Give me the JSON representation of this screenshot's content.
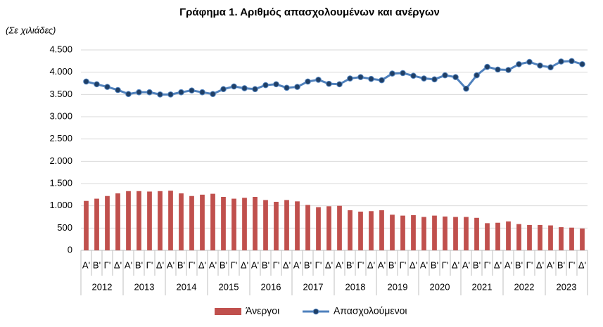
{
  "chart_data": {
    "type": "bar",
    "title": "Γράφημα 1. Αριθμός απασχολουμένων και ανέργων",
    "y_label": "(Σε χιλιάδες)",
    "categories": [
      "Α'",
      "Β'",
      "Γ'",
      "Δ'",
      "Α'",
      "Β'",
      "Γ'",
      "Δ'",
      "Α'",
      "Β'",
      "Γ'",
      "Δ'",
      "Α'",
      "Β'",
      "Γ'",
      "Δ'",
      "Α'",
      "Β'",
      "Γ'",
      "Δ'",
      "Α'",
      "Β'",
      "Γ'",
      "Δ'",
      "Α'",
      "Β'",
      "Γ'",
      "Δ'",
      "Α'",
      "Β'",
      "Γ'",
      "Δ'",
      "Α'",
      "Β'",
      "Γ'",
      "Δ'",
      "Α'",
      "Β'",
      "Γ'",
      "Δ'",
      "Α'",
      "Β'",
      "Γ'",
      "Δ'",
      "Α'",
      "Β'",
      "Γ'",
      "Δ'"
    ],
    "years": [
      "2012",
      "2013",
      "2014",
      "2015",
      "2016",
      "2017",
      "2018",
      "2019",
      "2020",
      "2021",
      "2022",
      "2023"
    ],
    "series": [
      {
        "name": "Άνεργοι",
        "type": "bar",
        "color": "#c0504d",
        "values": [
          1110,
          1160,
          1220,
          1280,
          1330,
          1330,
          1320,
          1330,
          1340,
          1280,
          1220,
          1250,
          1270,
          1200,
          1160,
          1180,
          1200,
          1130,
          1090,
          1130,
          1100,
          1020,
          970,
          990,
          1000,
          900,
          870,
          880,
          900,
          800,
          780,
          790,
          750,
          780,
          760,
          750,
          750,
          730,
          610,
          620,
          650,
          590,
          570,
          570,
          560,
          520,
          510,
          490
        ]
      },
      {
        "name": "Απασχολούμενοι",
        "type": "line",
        "color": "#4f81bd",
        "values": [
          3790,
          3730,
          3670,
          3600,
          3510,
          3550,
          3550,
          3500,
          3500,
          3550,
          3590,
          3550,
          3510,
          3620,
          3680,
          3640,
          3620,
          3710,
          3730,
          3650,
          3670,
          3790,
          3830,
          3740,
          3730,
          3860,
          3890,
          3850,
          3820,
          3970,
          3980,
          3920,
          3860,
          3840,
          3930,
          3890,
          3630,
          3930,
          4120,
          4060,
          4050,
          4180,
          4230,
          4150,
          4110,
          4240,
          4250,
          4180
        ]
      }
    ],
    "ylim": [
      0,
      4500
    ],
    "yticks": [
      0,
      500,
      {
        "value": 1000,
        "label": "1.000"
      },
      {
        "value": 1500,
        "label": "1.500"
      },
      {
        "value": 2000,
        "label": "2.000"
      },
      {
        "value": 2500,
        "label": "2.500"
      },
      {
        "value": 3000,
        "label": "3.000"
      },
      {
        "value": 3500,
        "label": "3.500"
      },
      {
        "value": 4000,
        "label": "4.000"
      },
      {
        "value": 4500,
        "label": "4.500"
      }
    ],
    "grid": true
  }
}
